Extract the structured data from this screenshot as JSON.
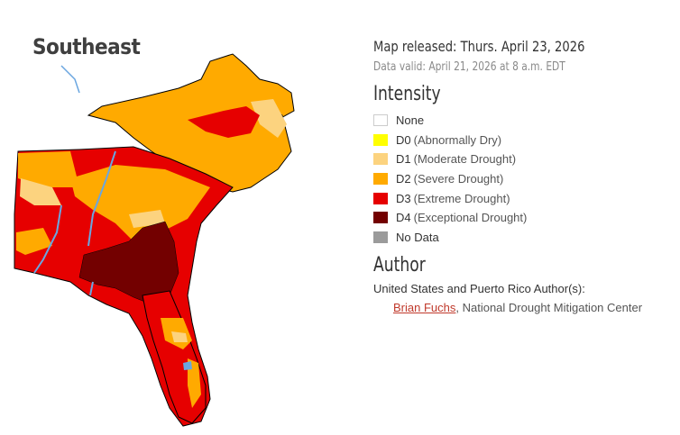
{
  "region_title": "Southeast",
  "released": "Map released: Thurs. April 23, 2026",
  "valid": "Data valid: April 21, 2026 at 8 a.m. EDT",
  "intensity_heading": "Intensity",
  "legend": [
    {
      "code": "None",
      "desc": "",
      "color": "#ffffff"
    },
    {
      "code": "D0",
      "desc": "(Abnormally Dry)",
      "color": "#ffff00"
    },
    {
      "code": "D1",
      "desc": "(Moderate Drought)",
      "color": "#fcd37f"
    },
    {
      "code": "D2",
      "desc": "(Severe Drought)",
      "color": "#ffaa00"
    },
    {
      "code": "D3",
      "desc": "(Extreme Drought)",
      "color": "#e60000"
    },
    {
      "code": "D4",
      "desc": "(Exceptional Drought)",
      "color": "#730000"
    },
    {
      "code": "No Data",
      "desc": "",
      "color": "#9b9b9b"
    }
  ],
  "author_heading": "Author",
  "author_sub": "United States and Puerto Rico Author(s):",
  "author_name": "Brian Fuchs",
  "author_org": ", National Drought Mitigation Center",
  "colors": {
    "water": "#6aa6e0",
    "border": "#000000"
  }
}
